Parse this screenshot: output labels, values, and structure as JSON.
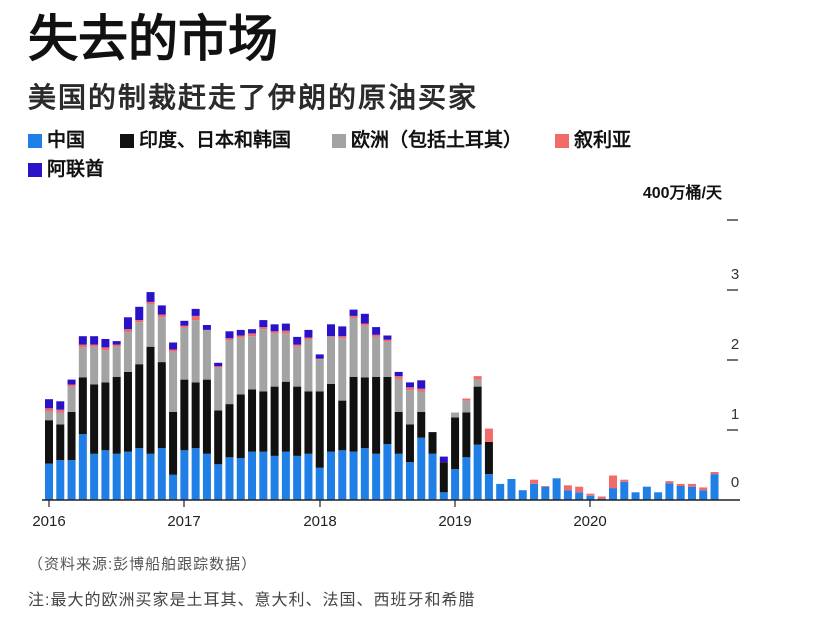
{
  "chart_data": {
    "type": "bar",
    "stacked": true,
    "title": "失去的市场",
    "subtitle": "美国的制裁赶走了伊朗的原油买家",
    "ylabel": "400万桶/天",
    "ylim": [
      0,
      4
    ],
    "yticks": [
      "0",
      "1",
      "2",
      "3"
    ],
    "xticks": [
      "2016",
      "2017",
      "2018",
      "2019",
      "2020"
    ],
    "grid": false,
    "legend": "top-left",
    "x": [
      "2016-01",
      "2016-02",
      "2016-03",
      "2016-04",
      "2016-05",
      "2016-06",
      "2016-07",
      "2016-08",
      "2016-09",
      "2016-10",
      "2016-11",
      "2016-12",
      "2017-01",
      "2017-02",
      "2017-03",
      "2017-04",
      "2017-05",
      "2017-06",
      "2017-07",
      "2017-08",
      "2017-09",
      "2017-10",
      "2017-11",
      "2017-12",
      "2018-01",
      "2018-02",
      "2018-03",
      "2018-04",
      "2018-05",
      "2018-06",
      "2018-07",
      "2018-08",
      "2018-09",
      "2018-10",
      "2018-11",
      "2018-12",
      "2019-01",
      "2019-02",
      "2019-03",
      "2019-04",
      "2019-05",
      "2019-06",
      "2019-07",
      "2019-08",
      "2019-09",
      "2019-10",
      "2019-11",
      "2019-12",
      "2020-01",
      "2020-02",
      "2020-03",
      "2020-04",
      "2020-05",
      "2020-06",
      "2020-07",
      "2020-08",
      "2020-09",
      "2020-10",
      "2020-11",
      "2020-12"
    ],
    "series": [
      {
        "name": "中国",
        "color": "#1f7fe6",
        "values": [
          0.52,
          0.57,
          0.57,
          0.94,
          0.66,
          0.71,
          0.66,
          0.69,
          0.74,
          0.66,
          0.74,
          0.36,
          0.71,
          0.74,
          0.66,
          0.51,
          0.61,
          0.6,
          0.69,
          0.69,
          0.63,
          0.69,
          0.63,
          0.66,
          0.46,
          0.69,
          0.71,
          0.69,
          0.74,
          0.66,
          0.8,
          0.66,
          0.54,
          0.89,
          0.66,
          0.11,
          0.44,
          0.61,
          0.79,
          0.37,
          0.23,
          0.3,
          0.14,
          0.23,
          0.19,
          0.31,
          0.14,
          0.11,
          0.06,
          0.02,
          0.17,
          0.26,
          0.11,
          0.19,
          0.11,
          0.24,
          0.2,
          0.19,
          0.14,
          0.37
        ]
      },
      {
        "name": "印度、日本和韩国",
        "color": "#111111",
        "values": [
          0.62,
          0.51,
          0.69,
          0.81,
          0.99,
          0.97,
          1.1,
          1.14,
          1.2,
          1.53,
          1.23,
          0.9,
          1.01,
          0.94,
          1.06,
          0.77,
          0.76,
          0.91,
          0.89,
          0.86,
          0.99,
          1.0,
          0.99,
          0.89,
          1.09,
          0.97,
          0.71,
          1.07,
          1.01,
          1.1,
          0.96,
          0.6,
          0.54,
          0.37,
          0.31,
          0.43,
          0.74,
          0.64,
          0.83,
          0.46,
          0,
          0,
          0,
          0,
          0,
          0,
          0,
          0,
          0,
          0,
          0,
          0,
          0,
          0,
          0,
          0,
          0,
          0,
          0,
          0
        ]
      },
      {
        "name": "欧洲（包括土耳其）",
        "color": "#a3a3a3",
        "values": [
          0.12,
          0.17,
          0.36,
          0.43,
          0.54,
          0.46,
          0.43,
          0.57,
          0.6,
          0.61,
          0.64,
          0.86,
          0.74,
          0.89,
          0.71,
          0.61,
          0.91,
          0.81,
          0.76,
          0.89,
          0.76,
          0.69,
          0.57,
          0.74,
          0.46,
          0.67,
          0.89,
          0.84,
          0.74,
          0.57,
          0.5,
          0.47,
          0.49,
          0.29,
          0,
          0,
          0.07,
          0.17,
          0.1,
          0,
          0,
          0,
          0,
          0,
          0,
          0,
          0,
          0,
          0,
          0,
          0,
          0,
          0,
          0,
          0,
          0,
          0,
          0,
          0,
          0
        ]
      },
      {
        "name": "叙利亚",
        "color": "#f26b6b",
        "values": [
          0.05,
          0.04,
          0.03,
          0.04,
          0.03,
          0.04,
          0.03,
          0.04,
          0.03,
          0.03,
          0.04,
          0.03,
          0.03,
          0.06,
          0,
          0.02,
          0.03,
          0.03,
          0.04,
          0.03,
          0.03,
          0.04,
          0.03,
          0.03,
          0.01,
          0.01,
          0.03,
          0.03,
          0.03,
          0.03,
          0.03,
          0.04,
          0.04,
          0.04,
          0,
          0,
          0,
          0.03,
          0.05,
          0.19,
          0,
          0,
          0,
          0.06,
          0.01,
          0,
          0.07,
          0.08,
          0.03,
          0.03,
          0.18,
          0.03,
          0,
          0,
          0,
          0.03,
          0.03,
          0.04,
          0.04,
          0.03
        ]
      },
      {
        "name": "阿联酋",
        "color": "#2a12c9",
        "values": [
          0.13,
          0.12,
          0.07,
          0.12,
          0.12,
          0.12,
          0.05,
          0.17,
          0.19,
          0.14,
          0.13,
          0.1,
          0.07,
          0.1,
          0.07,
          0.05,
          0.1,
          0.08,
          0.06,
          0.1,
          0.1,
          0.1,
          0.11,
          0.11,
          0.06,
          0.17,
          0.14,
          0.09,
          0.14,
          0.11,
          0.06,
          0.06,
          0.07,
          0.12,
          0,
          0.08,
          0,
          0,
          0,
          0,
          0,
          0,
          0,
          0,
          0,
          0,
          0,
          0,
          0,
          0,
          0,
          0,
          0,
          0,
          0,
          0,
          0,
          0,
          0,
          0
        ]
      }
    ],
    "source": "（资料来源:彭博船舶跟踪数据）",
    "note": "注:最大的欧洲买家是土耳其、意大利、法国、西班牙和希腊"
  }
}
